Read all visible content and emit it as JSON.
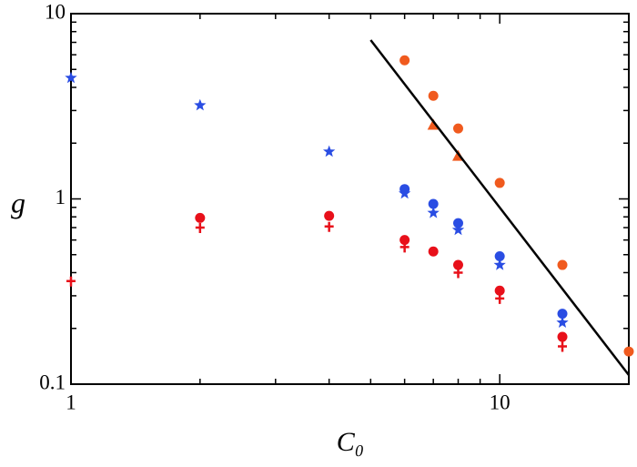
{
  "chart_data": {
    "type": "scatter",
    "x_label": "C₀",
    "y_label": "g",
    "xlog": true,
    "ylog": true,
    "xlim": [
      1,
      20
    ],
    "ylim": [
      0.1,
      10
    ],
    "xticks": [
      1,
      10
    ],
    "yticks": [
      0.1,
      1,
      10
    ],
    "xminorticks": [
      2,
      3,
      4,
      5,
      6,
      7,
      8,
      9
    ],
    "yminorticks": [
      0.2,
      0.3,
      0.4,
      0.5,
      0.6,
      0.7,
      0.8,
      0.9,
      2,
      3,
      4,
      5,
      6,
      7,
      8,
      9
    ],
    "series": [
      {
        "marker": "star",
        "color": "#2a4de3",
        "x": [
          1,
          2,
          4,
          6,
          7,
          8,
          10,
          14
        ],
        "values": [
          4.5,
          3.2,
          1.8,
          1.07,
          0.84,
          0.68,
          0.44,
          0.215
        ]
      },
      {
        "marker": "circle",
        "color": "#2a4de3",
        "x": [
          6,
          7,
          8,
          10,
          14
        ],
        "values": [
          1.13,
          0.94,
          0.74,
          0.49,
          0.24
        ]
      },
      {
        "marker": "circle",
        "color": "#e8101a",
        "x": [
          2,
          4,
          6,
          7,
          8,
          10,
          14
        ],
        "values": [
          0.79,
          0.81,
          0.6,
          0.52,
          0.44,
          0.32,
          0.18
        ]
      },
      {
        "marker": "plus",
        "color": "#e8101a",
        "x": [
          1,
          2,
          4,
          6,
          8,
          10,
          14
        ],
        "values": [
          0.36,
          0.7,
          0.71,
          0.55,
          0.4,
          0.29,
          0.16
        ]
      },
      {
        "marker": "circle",
        "color": "#f05a1e",
        "x": [
          6,
          7,
          8,
          10,
          14,
          20
        ],
        "values": [
          5.6,
          3.6,
          2.4,
          1.22,
          0.44,
          0.15
        ]
      },
      {
        "marker": "triangle",
        "color": "#f05a1e",
        "x": [
          7,
          8
        ],
        "values": [
          2.5,
          1.7
        ]
      },
      {
        "marker": "line",
        "color": "#000000",
        "x": [
          5,
          20
        ],
        "values": [
          7.2,
          0.112
        ]
      }
    ]
  }
}
